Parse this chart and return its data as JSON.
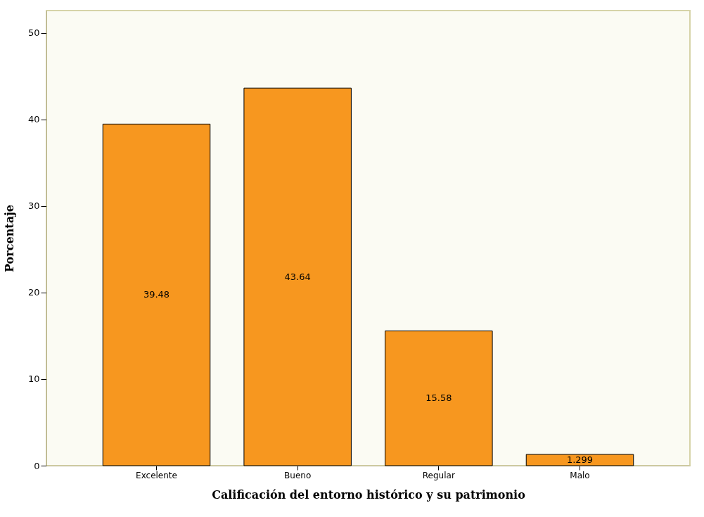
{
  "chart_data": {
    "type": "bar",
    "xlabel": "Calificación del entorno histórico y su patrimonio",
    "ylabel": "Porcentaje",
    "categories": [
      "Excelente",
      "Bueno",
      "Regular",
      "Malo"
    ],
    "values": [
      39.48,
      43.64,
      15.58,
      1.299
    ],
    "color": "#f7971f",
    "ylim": [
      0,
      52.6
    ],
    "yticks": [
      0,
      10,
      20,
      30,
      40,
      50
    ],
    "data_labels": true
  }
}
